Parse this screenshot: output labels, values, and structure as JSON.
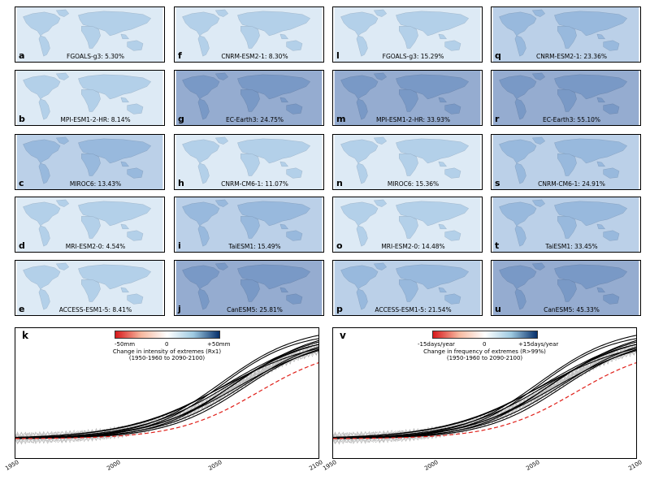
{
  "panels": [
    {
      "letter": "a",
      "caption": "FGOALS-g3: 5.30%",
      "palette": "light"
    },
    {
      "letter": "b",
      "caption": "MPI-ESM1-2-HR: 8.14%",
      "palette": "light"
    },
    {
      "letter": "c",
      "caption": "MIROC6: 13.43%",
      "palette": "medium"
    },
    {
      "letter": "d",
      "caption": "MRI-ESM2-0: 4.54%",
      "palette": "light"
    },
    {
      "letter": "e",
      "caption": "ACCESS-ESM1-5: 8.41%",
      "palette": "light"
    },
    {
      "letter": "f",
      "caption": "CNRM-ESM2-1: 8.30%",
      "palette": "light"
    },
    {
      "letter": "g",
      "caption": "EC-Earth3: 24.75%",
      "palette": "strong"
    },
    {
      "letter": "h",
      "caption": "CNRM-CM6-1: 11.07%",
      "palette": "light"
    },
    {
      "letter": "i",
      "caption": "TaiESM1: 15.49%",
      "palette": "medium"
    },
    {
      "letter": "j",
      "caption": "CanESM5: 25.81%",
      "palette": "strong"
    },
    {
      "letter": "l",
      "caption": "FGOALS-g3: 15.29%",
      "palette": "light"
    },
    {
      "letter": "m",
      "caption": "MPI-ESM1-2-HR: 33.93%",
      "palette": "strong"
    },
    {
      "letter": "n",
      "caption": "MIROC6: 15.36%",
      "palette": "light"
    },
    {
      "letter": "o",
      "caption": "MRI-ESM2-0: 14.48%",
      "palette": "light"
    },
    {
      "letter": "p",
      "caption": "ACCESS-ESM1-5: 21.54%",
      "palette": "medium"
    },
    {
      "letter": "q",
      "caption": "CNRM-ESM2-1: 23.36%",
      "palette": "medium"
    },
    {
      "letter": "r",
      "caption": "EC-Earth3: 55.10%",
      "palette": "strong"
    },
    {
      "letter": "s",
      "caption": "CNRM-CM6-1: 24.91%",
      "palette": "medium"
    },
    {
      "letter": "t",
      "caption": "TaiESM1: 33.45%",
      "palette": "medium"
    },
    {
      "letter": "u",
      "caption": "CanESM5: 45.33%",
      "palette": "strong"
    }
  ],
  "colors": {
    "negative": "#d7191c",
    "neutral": "#ffffff",
    "positive": "#08306b",
    "ensemble_line": "#000000",
    "background_lines": "#bbbbbb",
    "reference_line": "#e0201a"
  },
  "chart_data": [
    {
      "type": "line",
      "panel": "k",
      "x_ticks": [
        "1950",
        "2000",
        "2050",
        "2100"
      ],
      "xlim": [
        1950,
        2100
      ],
      "colorbar": {
        "min_label": "-50mm",
        "mid_label": "0",
        "max_label": "+50mm",
        "title_line1": "Change in intensity of extremes (Rx1)",
        "title_line2": "(1950-1960 to 2090-2100)"
      },
      "series_count": 10,
      "reference_line_style": "dashed"
    },
    {
      "type": "line",
      "panel": "v",
      "x_ticks": [
        "1950",
        "2000",
        "2050",
        "2100"
      ],
      "xlim": [
        1950,
        2100
      ],
      "colorbar": {
        "min_label": "-15days/year",
        "mid_label": "0",
        "max_label": "+15days/year",
        "title_line1": "Change in frequency of extremes (R>99%)",
        "title_line2": "(1950-1960 to 2090-2100)"
      },
      "series_count": 10,
      "reference_line_style": "dashed"
    }
  ]
}
